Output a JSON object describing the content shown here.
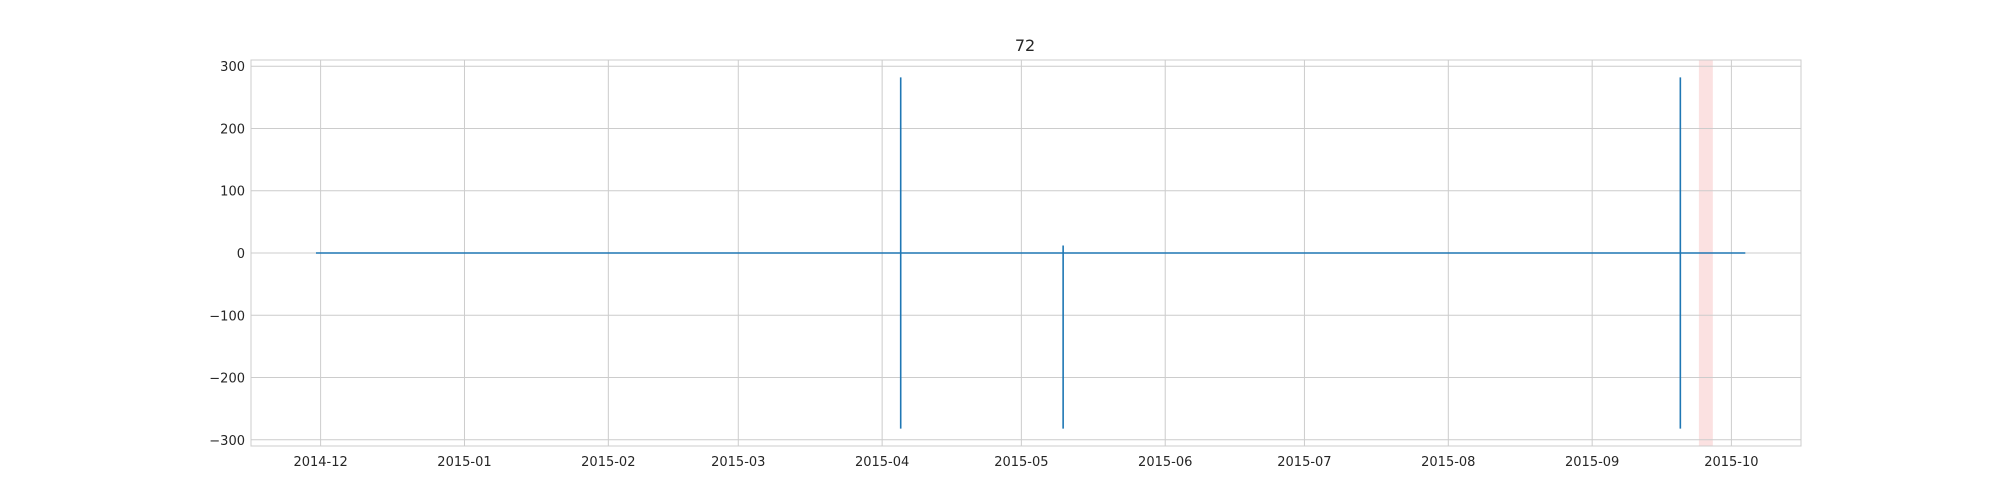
{
  "chart_data": {
    "type": "line",
    "title": "72",
    "xlabel": "",
    "ylabel": "",
    "x_axis": {
      "kind": "date",
      "range": [
        "2014-11-16",
        "2015-10-16"
      ],
      "ticks": [
        {
          "date": "2014-12-01",
          "label": "2014-12"
        },
        {
          "date": "2015-01-01",
          "label": "2015-01"
        },
        {
          "date": "2015-02-01",
          "label": "2015-02"
        },
        {
          "date": "2015-03-01",
          "label": "2015-03"
        },
        {
          "date": "2015-04-01",
          "label": "2015-04"
        },
        {
          "date": "2015-05-01",
          "label": "2015-05"
        },
        {
          "date": "2015-06-01",
          "label": "2015-06"
        },
        {
          "date": "2015-07-01",
          "label": "2015-07"
        },
        {
          "date": "2015-08-01",
          "label": "2015-08"
        },
        {
          "date": "2015-09-01",
          "label": "2015-09"
        },
        {
          "date": "2015-10-01",
          "label": "2015-10"
        }
      ]
    },
    "y_axis": {
      "range": [
        -310,
        310
      ],
      "ticks": [
        {
          "value": 300,
          "label": "300"
        },
        {
          "value": 200,
          "label": "200"
        },
        {
          "value": 100,
          "label": "100"
        },
        {
          "value": 0,
          "label": "0"
        },
        {
          "value": -100,
          "label": "−100"
        },
        {
          "value": -200,
          "label": "−200"
        },
        {
          "value": -300,
          "label": "−300"
        }
      ]
    },
    "grid": true,
    "legend": "none",
    "series": [
      {
        "color": "#1f77b4",
        "points": [
          {
            "x": "2014-11-30",
            "y": 0
          },
          {
            "x": "2015-04-05",
            "y": 0
          },
          {
            "x": "2015-04-05",
            "y": 282
          },
          {
            "x": "2015-04-05",
            "y": -282
          },
          {
            "x": "2015-04-05",
            "y": 0
          },
          {
            "x": "2015-05-10",
            "y": 0
          },
          {
            "x": "2015-05-10",
            "y": 12
          },
          {
            "x": "2015-05-10",
            "y": -282
          },
          {
            "x": "2015-05-10",
            "y": 0
          },
          {
            "x": "2015-09-20",
            "y": 0
          },
          {
            "x": "2015-09-20",
            "y": 282
          },
          {
            "x": "2015-09-20",
            "y": -282
          },
          {
            "x": "2015-09-20",
            "y": 0
          },
          {
            "x": "2015-10-04",
            "y": 0
          }
        ]
      }
    ],
    "highlight_spans": [
      {
        "start": "2015-09-24",
        "end": "2015-09-27",
        "color": "#f8c8c8"
      }
    ]
  }
}
